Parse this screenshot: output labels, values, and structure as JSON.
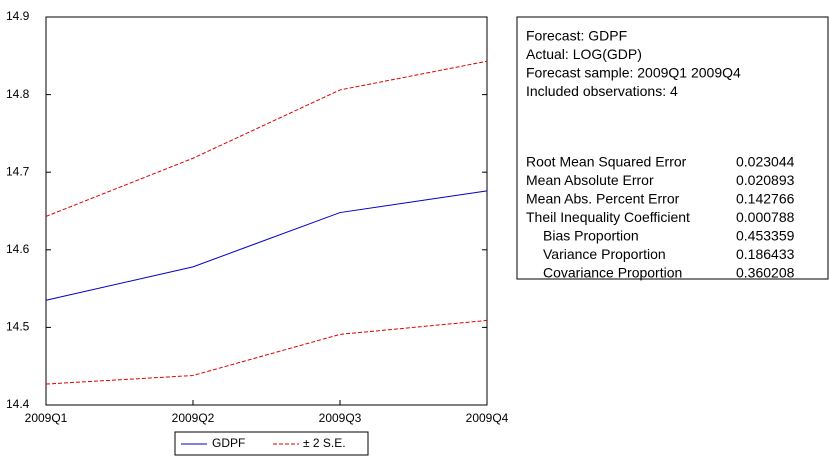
{
  "chart_data": {
    "type": "line",
    "categories": [
      "2009Q1",
      "2009Q2",
      "2009Q3",
      "2009Q4"
    ],
    "series": [
      {
        "name": "GDPF",
        "color": "#0000cc",
        "values": [
          14.535,
          14.578,
          14.648,
          14.676
        ]
      }
    ],
    "band": {
      "name": "± 2 S.E.",
      "color": "#dd0000",
      "upper": [
        14.643,
        14.718,
        14.806,
        14.843
      ],
      "lower": [
        14.427,
        14.438,
        14.491,
        14.509
      ]
    },
    "ylim": [
      14.4,
      14.9
    ],
    "yticks": [
      14.4,
      14.5,
      14.6,
      14.7,
      14.8,
      14.9
    ]
  },
  "stats": {
    "lines": [
      "Forecast: GDPF",
      "Actual: LOG(GDP)",
      "Forecast sample: 2009Q1 2009Q4",
      "Included observations: 4"
    ],
    "rows": [
      [
        "Root Mean Squared Error",
        0.023044
      ],
      [
        "Mean Absolute Error",
        0.020893
      ],
      [
        "Mean Abs. Percent Error",
        0.142766
      ],
      [
        "Theil Inequality Coefficient",
        0.000788
      ],
      [
        "Bias Proportion",
        0.453359
      ],
      [
        "Variance Proportion",
        0.186433
      ],
      [
        "Covariance Proportion",
        0.360208
      ]
    ]
  }
}
